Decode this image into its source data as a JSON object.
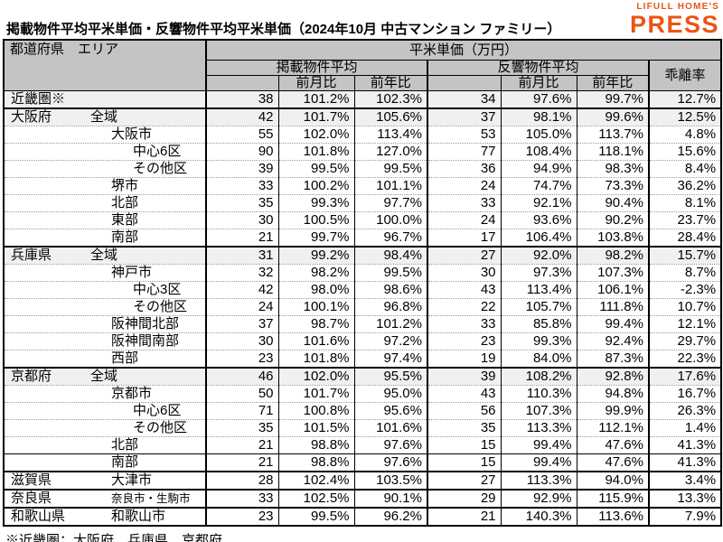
{
  "page": {
    "title": "掲載物件平均平米単価・反響物件平均平米単価（2024年10月 中古マンション ファミリー）",
    "logo": {
      "line1": "LIFULL HOME'S",
      "line2": "PRESS"
    },
    "footnote": "※近畿圏：大阪府、兵庫県、京都府"
  },
  "colors": {
    "logo_orange": "#EA5514",
    "header_bg": "#c4c4c4",
    "shaded_row_bg": "#f0f0f0",
    "border_black": "#000000"
  },
  "table": {
    "header": {
      "region": "都道府県　エリア",
      "unit_group": "平米単価（万円）",
      "listed_group": "掲載物件平均",
      "response_group": "反響物件平均",
      "divergence": "乖離率",
      "mom": "前月比",
      "yoy": "前年比"
    },
    "rows": [
      {
        "pref": "近畿圏※",
        "area": "",
        "indent": 0,
        "shaded": true,
        "listed": [
          "38",
          "101.2%",
          "102.3%"
        ],
        "response": [
          "34",
          "97.6%",
          "99.7%"
        ],
        "div": "12.7%"
      },
      {
        "pref": "大阪府",
        "area": "全域",
        "indent": 1,
        "shaded": true,
        "border": "thick",
        "listed": [
          "42",
          "101.7%",
          "105.6%"
        ],
        "response": [
          "37",
          "98.1%",
          "99.6%"
        ],
        "div": "12.5%"
      },
      {
        "pref": "",
        "area": "大阪市",
        "indent": 2,
        "listed": [
          "55",
          "102.0%",
          "113.4%"
        ],
        "response": [
          "53",
          "105.0%",
          "113.7%"
        ],
        "div": "4.8%"
      },
      {
        "pref": "",
        "area": "中心6区",
        "indent": 3,
        "listed": [
          "90",
          "101.8%",
          "127.0%"
        ],
        "response": [
          "77",
          "108.4%",
          "118.1%"
        ],
        "div": "15.6%"
      },
      {
        "pref": "",
        "area": "その他区",
        "indent": 3,
        "listed": [
          "39",
          "99.5%",
          "99.5%"
        ],
        "response": [
          "36",
          "94.9%",
          "98.3%"
        ],
        "div": "8.4%"
      },
      {
        "pref": "",
        "area": "堺市",
        "indent": 2,
        "listed": [
          "33",
          "100.2%",
          "101.1%"
        ],
        "response": [
          "24",
          "74.7%",
          "73.3%"
        ],
        "div": "36.2%"
      },
      {
        "pref": "",
        "area": "北部",
        "indent": 2,
        "listed": [
          "35",
          "99.3%",
          "97.7%"
        ],
        "response": [
          "33",
          "92.1%",
          "90.4%"
        ],
        "div": "8.1%"
      },
      {
        "pref": "",
        "area": "東部",
        "indent": 2,
        "listed": [
          "30",
          "100.5%",
          "100.0%"
        ],
        "response": [
          "24",
          "93.6%",
          "90.2%"
        ],
        "div": "23.7%"
      },
      {
        "pref": "",
        "area": "南部",
        "indent": 2,
        "listed": [
          "21",
          "99.7%",
          "96.7%"
        ],
        "response": [
          "17",
          "106.4%",
          "103.8%"
        ],
        "div": "28.4%"
      },
      {
        "pref": "兵庫県",
        "area": "全域",
        "indent": 1,
        "shaded": true,
        "border": "thick",
        "listed": [
          "31",
          "99.2%",
          "98.4%"
        ],
        "response": [
          "27",
          "92.0%",
          "98.2%"
        ],
        "div": "15.7%"
      },
      {
        "pref": "",
        "area": "神戸市",
        "indent": 2,
        "listed": [
          "32",
          "98.2%",
          "99.5%"
        ],
        "response": [
          "30",
          "97.3%",
          "107.3%"
        ],
        "div": "8.7%"
      },
      {
        "pref": "",
        "area": "中心3区",
        "indent": 3,
        "listed": [
          "42",
          "98.0%",
          "98.6%"
        ],
        "response": [
          "43",
          "113.4%",
          "106.1%"
        ],
        "div": "-2.3%"
      },
      {
        "pref": "",
        "area": "その他区",
        "indent": 3,
        "listed": [
          "24",
          "100.1%",
          "96.8%"
        ],
        "response": [
          "22",
          "105.7%",
          "111.8%"
        ],
        "div": "10.7%"
      },
      {
        "pref": "",
        "area": "阪神間北部",
        "indent": 2,
        "listed": [
          "37",
          "98.7%",
          "101.2%"
        ],
        "response": [
          "33",
          "85.8%",
          "99.4%"
        ],
        "div": "12.1%"
      },
      {
        "pref": "",
        "area": "阪神間南部",
        "indent": 2,
        "listed": [
          "30",
          "101.6%",
          "97.2%"
        ],
        "response": [
          "23",
          "99.3%",
          "92.4%"
        ],
        "div": "29.7%"
      },
      {
        "pref": "",
        "area": "西部",
        "indent": 2,
        "listed": [
          "23",
          "101.8%",
          "97.4%"
        ],
        "response": [
          "19",
          "84.0%",
          "87.3%"
        ],
        "div": "22.3%"
      },
      {
        "pref": "京都府",
        "area": "全域",
        "indent": 1,
        "shaded": true,
        "border": "thick",
        "listed": [
          "46",
          "102.0%",
          "95.5%"
        ],
        "response": [
          "39",
          "108.2%",
          "92.8%"
        ],
        "div": "17.6%"
      },
      {
        "pref": "",
        "area": "京都市",
        "indent": 2,
        "listed": [
          "50",
          "101.7%",
          "95.0%"
        ],
        "response": [
          "43",
          "110.3%",
          "94.8%"
        ],
        "div": "16.7%"
      },
      {
        "pref": "",
        "area": "中心6区",
        "indent": 3,
        "listed": [
          "71",
          "100.8%",
          "95.6%"
        ],
        "response": [
          "56",
          "107.3%",
          "99.9%"
        ],
        "div": "26.3%"
      },
      {
        "pref": "",
        "area": "その他区",
        "indent": 3,
        "listed": [
          "35",
          "101.5%",
          "101.6%"
        ],
        "response": [
          "35",
          "113.3%",
          "112.1%"
        ],
        "div": "1.4%"
      },
      {
        "pref": "",
        "area": "北部",
        "indent": 2,
        "listed": [
          "21",
          "98.8%",
          "97.6%"
        ],
        "response": [
          "15",
          "99.4%",
          "47.6%"
        ],
        "div": "41.3%"
      },
      {
        "pref": "",
        "area": "南部",
        "indent": 2,
        "border": "solid",
        "listed": [
          "21",
          "98.8%",
          "97.6%"
        ],
        "response": [
          "15",
          "99.4%",
          "47.6%"
        ],
        "div": "41.3%"
      },
      {
        "pref": "滋賀県",
        "area": "大津市",
        "indent": 2,
        "border": "thick",
        "listed": [
          "28",
          "102.4%",
          "103.5%"
        ],
        "response": [
          "27",
          "113.3%",
          "94.0%"
        ],
        "div": "3.4%"
      },
      {
        "pref": "奈良県",
        "area": "奈良市・生駒市",
        "indent": 2,
        "small": true,
        "border": "thick",
        "listed": [
          "33",
          "102.5%",
          "90.1%"
        ],
        "response": [
          "29",
          "92.9%",
          "115.9%"
        ],
        "div": "13.3%"
      },
      {
        "pref": "和歌山県",
        "area": "和歌山市",
        "indent": 2,
        "border": "thick",
        "listed": [
          "23",
          "99.5%",
          "96.2%"
        ],
        "response": [
          "21",
          "140.3%",
          "113.6%"
        ],
        "div": "7.9%"
      }
    ]
  }
}
